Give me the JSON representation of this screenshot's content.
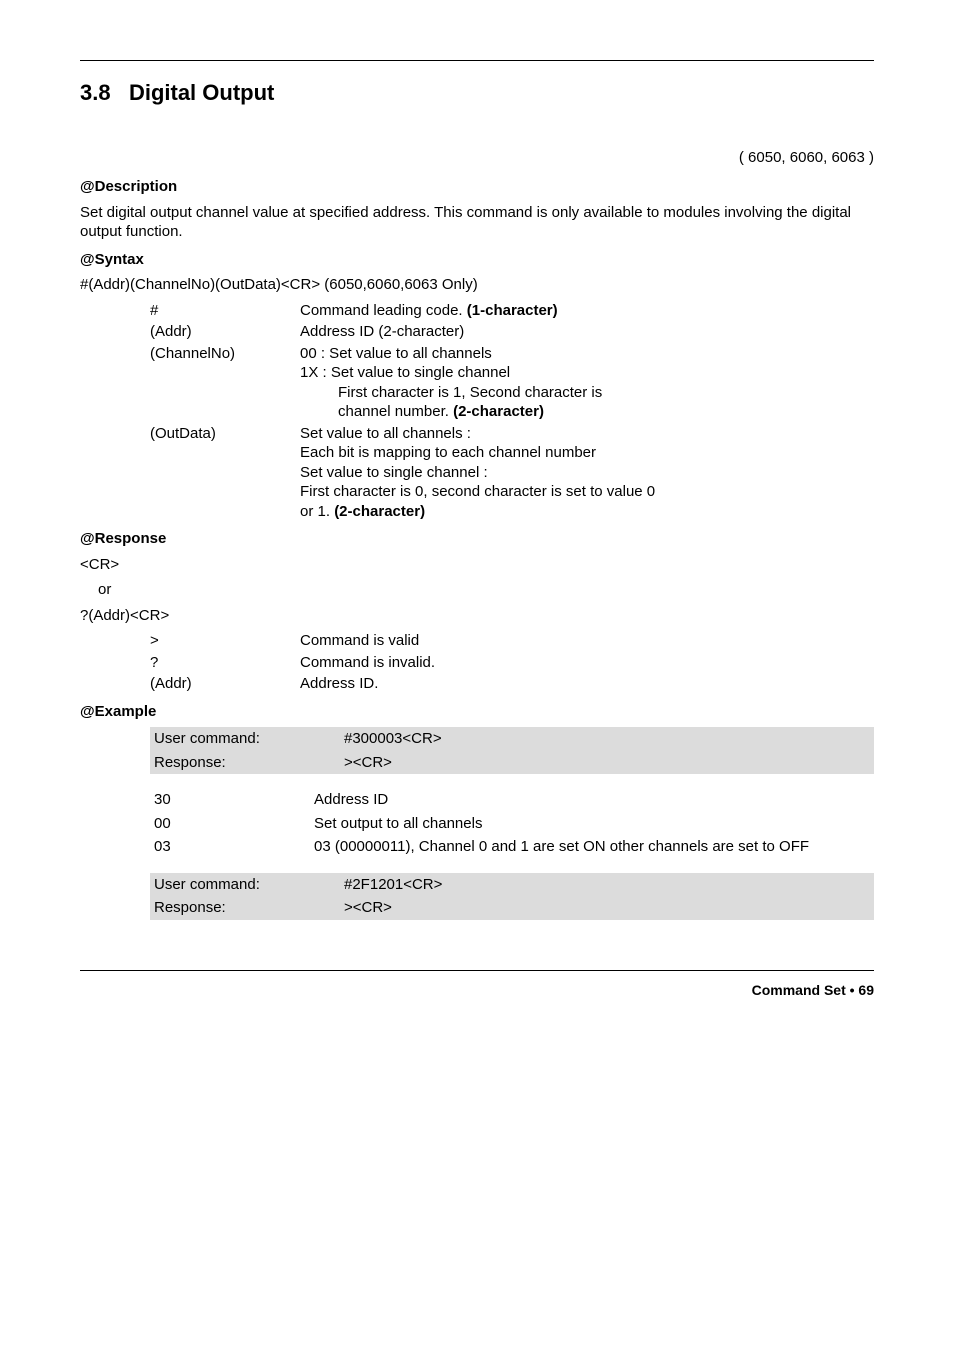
{
  "section": {
    "number": "3.8",
    "title": "Digital Output"
  },
  "models": "( 6050, 6060, 6063 )",
  "description": {
    "heading": "@Description",
    "text": "Set digital output channel value at specified address.  This command is only available to modules involving the digital output function."
  },
  "syntax": {
    "heading": "@Syntax",
    "line": "#(Addr)(ChannelNo)(OutData)<CR>  (6050,6060,6063 Only)",
    "params": [
      {
        "key": "#",
        "lines": [
          {
            "t": "Command leading code. ",
            "b": "(1-character)"
          }
        ]
      },
      {
        "key": "(Addr)",
        "lines": [
          {
            "t": "Address ID (2-character)"
          }
        ]
      },
      {
        "key": "(ChannelNo)",
        "lines": [
          {
            "t": "00 : Set value to all channels"
          },
          {
            "t": "1X : Set value to single channel"
          },
          {
            "t": "First character is 1, Second character is",
            "indent": true
          },
          {
            "t": "channel number.  ",
            "b": "(2-character)",
            "indent": true
          }
        ]
      },
      {
        "key": "(OutData)",
        "lines": [
          {
            "t": "Set value to all channels :"
          },
          {
            "t": "Each bit is mapping to each channel number"
          },
          {
            "t": "Set value to single channel :"
          },
          {
            "t": "First character is 0, second character is set to value 0"
          },
          {
            "t": "or 1. ",
            "b": "(2-character)"
          }
        ]
      }
    ]
  },
  "response": {
    "heading": "@Response",
    "l1": "<CR>",
    "l2": "or",
    "l3": "?(Addr)<CR>",
    "params": [
      {
        "key": ">",
        "val": "Command is valid"
      },
      {
        "key": "?",
        "val": "Command is invalid."
      },
      {
        "key": "(Addr)",
        "val": "Address ID."
      }
    ]
  },
  "example": {
    "heading": "@Example",
    "rows": [
      {
        "shaded": true,
        "left": "User command:",
        "right": "#300003<CR>",
        "pad": true
      },
      {
        "shaded": true,
        "left": "Response:",
        "right": "><CR>",
        "pad": true
      },
      {
        "spacer": true
      },
      {
        "left": "30",
        "right": "Address ID"
      },
      {
        "left": "00",
        "right": "Set output to all channels"
      },
      {
        "left": "03",
        "right": "03 (00000011), Channel 0 and 1 are set ON other channels are set to OFF"
      },
      {
        "spacer": true
      },
      {
        "shaded": true,
        "left": "User command:",
        "right": "#2F1201<CR>",
        "pad": true
      },
      {
        "shaded": true,
        "left": "Response:",
        "right": "><CR>",
        "pad": true
      }
    ]
  },
  "footer": {
    "label": "Command Set",
    "bullet": "•",
    "page": "69"
  }
}
